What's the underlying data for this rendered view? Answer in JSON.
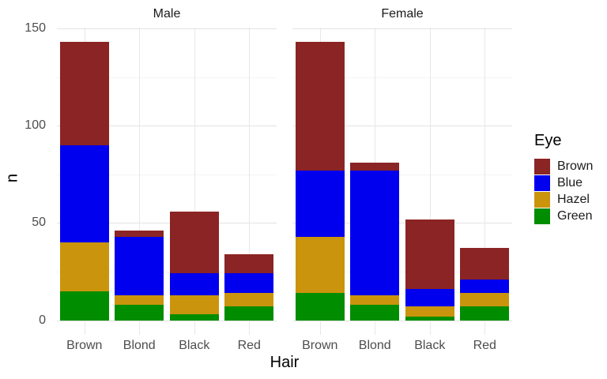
{
  "chart_data": {
    "type": "bar",
    "stacked": true,
    "title": "",
    "xlabel": "Hair",
    "ylabel": "n",
    "categories": [
      "Brown",
      "Blond",
      "Black",
      "Red"
    ],
    "stack_order_top_to_bottom": [
      "Brown",
      "Blue",
      "Hazel",
      "Green"
    ],
    "palette": {
      "Brown": "#8B2424",
      "Blue": "#0000EE",
      "Hazel": "#CA940C",
      "Green": "#008D00"
    },
    "facets": [
      {
        "label": "Male",
        "series": [
          {
            "name": "Brown",
            "values": [
              53,
              3,
              32,
              10
            ]
          },
          {
            "name": "Blue",
            "values": [
              50,
              30,
              11,
              10
            ]
          },
          {
            "name": "Hazel",
            "values": [
              25,
              5,
              10,
              7
            ]
          },
          {
            "name": "Green",
            "values": [
              15,
              8,
              3,
              7
            ]
          }
        ]
      },
      {
        "label": "Female",
        "series": [
          {
            "name": "Brown",
            "values": [
              66,
              4,
              36,
              16
            ]
          },
          {
            "name": "Blue",
            "values": [
              34,
              64,
              9,
              7
            ]
          },
          {
            "name": "Hazel",
            "values": [
              29,
              5,
              5,
              7
            ]
          },
          {
            "name": "Green",
            "values": [
              14,
              8,
              2,
              7
            ]
          }
        ]
      }
    ],
    "yticks": [
      0,
      50,
      100,
      150
    ],
    "yminor_ticks": [
      25,
      75,
      125
    ],
    "ylim": [
      -7.5,
      150.5
    ],
    "grid": true,
    "legend": {
      "title": "Eye",
      "position": "right",
      "entries": [
        "Brown",
        "Blue",
        "Hazel",
        "Green"
      ]
    },
    "style": {
      "axis_text_color": "#4d4d4d",
      "strip_text_color": "#1a1a1a",
      "axis_title_color": "#000000",
      "grid_major_color": "#E3E3E3",
      "grid_minor_color": "#F4F4F4",
      "grid_vertical_color": "#E7E7E7",
      "background": "#FFFFFF"
    }
  }
}
